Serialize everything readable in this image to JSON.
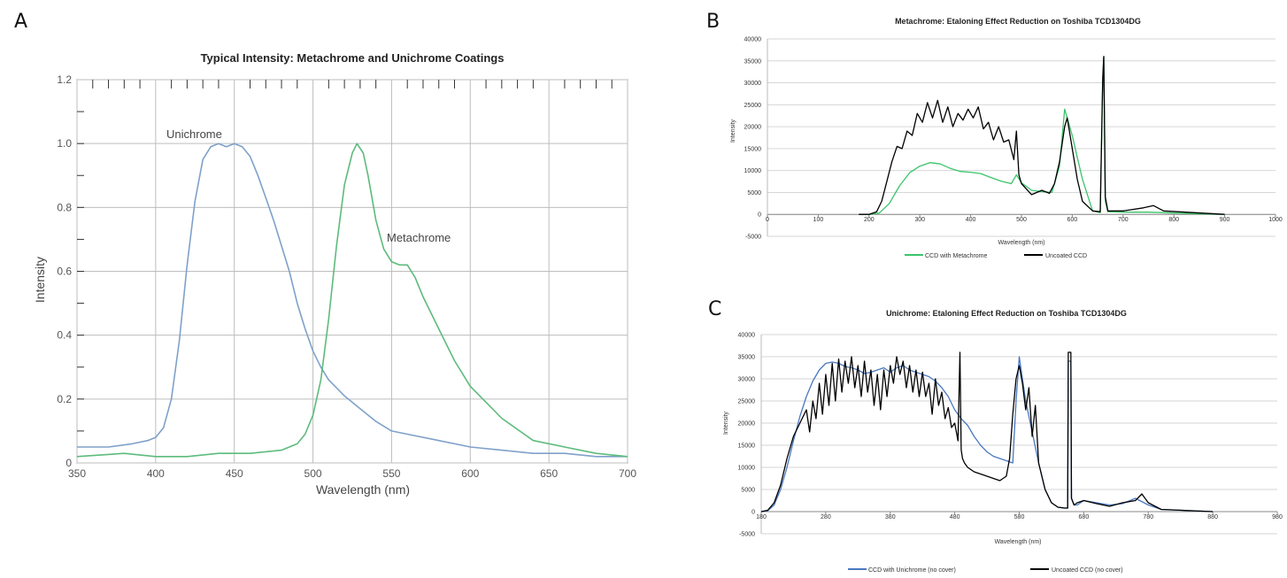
{
  "panel_letters": [
    "A",
    "B",
    "C"
  ],
  "colors": {
    "unichrome": "#7fa1c9",
    "metachrome": "#5dbb7c",
    "metachrome_ccd": "#3ac46a",
    "uncoated": "#000000",
    "unichrome_ccd": "#4a78c0",
    "grid": "#bdbdbd"
  },
  "chart_data": [
    {
      "type": "line",
      "title": "Typical Intensity: Metachrome and Unichrome Coatings",
      "xlabel": "Wavelength (nm)",
      "ylabel": "Intensity",
      "xlim": [
        350,
        700
      ],
      "ylim": [
        0,
        1.2
      ],
      "x_ticks": [
        "350",
        "400",
        "450",
        "500",
        "550",
        "600",
        "650",
        "700"
      ],
      "y_ticks": [
        "0",
        "0.2",
        "0.4",
        "0.6",
        "0.8",
        "1.0",
        "1.2"
      ],
      "annotations": [
        "Unichrome",
        "Metachrome"
      ],
      "series": [
        {
          "name": "Unichrome",
          "x": [
            350,
            370,
            385,
            395,
            400,
            405,
            410,
            415,
            420,
            425,
            430,
            435,
            440,
            445,
            450,
            455,
            460,
            465,
            470,
            475,
            480,
            485,
            490,
            495,
            500,
            505,
            510,
            520,
            530,
            540,
            550,
            560,
            580,
            600,
            620,
            640,
            660,
            680,
            700
          ],
          "y": [
            0.05,
            0.05,
            0.06,
            0.07,
            0.08,
            0.11,
            0.2,
            0.38,
            0.62,
            0.82,
            0.95,
            0.99,
            1.0,
            0.99,
            1.0,
            0.99,
            0.96,
            0.9,
            0.83,
            0.76,
            0.68,
            0.6,
            0.5,
            0.42,
            0.35,
            0.3,
            0.26,
            0.21,
            0.17,
            0.13,
            0.1,
            0.09,
            0.07,
            0.05,
            0.04,
            0.03,
            0.03,
            0.02,
            0.02
          ]
        },
        {
          "name": "Metachrome",
          "x": [
            350,
            380,
            400,
            420,
            440,
            460,
            480,
            490,
            495,
            500,
            505,
            510,
            515,
            520,
            525,
            528,
            532,
            535,
            540,
            545,
            550,
            555,
            560,
            565,
            570,
            580,
            590,
            600,
            610,
            620,
            640,
            660,
            680,
            700
          ],
          "y": [
            0.02,
            0.03,
            0.02,
            0.02,
            0.03,
            0.03,
            0.04,
            0.06,
            0.09,
            0.15,
            0.26,
            0.45,
            0.68,
            0.87,
            0.97,
            1.0,
            0.97,
            0.9,
            0.76,
            0.67,
            0.63,
            0.62,
            0.62,
            0.58,
            0.52,
            0.42,
            0.32,
            0.24,
            0.19,
            0.14,
            0.07,
            0.05,
            0.03,
            0.02
          ]
        }
      ]
    },
    {
      "type": "line",
      "title": "Metachrome: Etaloning Effect Reduction on Toshiba TCD1304DG",
      "xlabel": "Wavelength (nm)",
      "ylabel": "Intensity",
      "xlim": [
        0,
        1000
      ],
      "ylim": [
        -5000,
        40000
      ],
      "x_ticks": [
        "0",
        "100",
        "200",
        "300",
        "400",
        "500",
        "600",
        "700",
        "800",
        "900",
        "1000"
      ],
      "y_ticks": [
        "-5000",
        "0",
        "5000",
        "10000",
        "15000",
        "20000",
        "25000",
        "30000",
        "35000",
        "40000"
      ],
      "series": [
        {
          "name": "CCD with Metachrome",
          "x": [
            180,
            200,
            220,
            240,
            260,
            280,
            300,
            320,
            340,
            360,
            380,
            400,
            420,
            440,
            460,
            480,
            490,
            500,
            520,
            540,
            560,
            575,
            585,
            590,
            600,
            610,
            620,
            640,
            655,
            660,
            662,
            665,
            670,
            700,
            750,
            800,
            900
          ],
          "y": [
            0,
            0,
            300,
            2500,
            6500,
            9500,
            11000,
            11800,
            11500,
            10500,
            9800,
            9600,
            9300,
            8400,
            7600,
            7000,
            9000,
            7200,
            5500,
            5200,
            5000,
            11000,
            24000,
            22000,
            18000,
            13000,
            8000,
            800,
            400,
            30000,
            36000,
            3000,
            600,
            500,
            500,
            300,
            0
          ]
        },
        {
          "name": "Uncoated CCD",
          "x": [
            180,
            200,
            215,
            225,
            235,
            245,
            255,
            265,
            275,
            285,
            295,
            305,
            315,
            325,
            335,
            345,
            355,
            365,
            375,
            385,
            395,
            405,
            415,
            425,
            435,
            445,
            455,
            465,
            475,
            485,
            490,
            495,
            500,
            520,
            540,
            555,
            565,
            575,
            585,
            590,
            600,
            610,
            620,
            640,
            655,
            660,
            662,
            665,
            670,
            700,
            740,
            760,
            780,
            900
          ],
          "y": [
            0,
            0,
            600,
            3000,
            7500,
            12000,
            15500,
            15000,
            19000,
            18000,
            23000,
            21000,
            25500,
            22000,
            26000,
            21000,
            24500,
            20000,
            23000,
            21500,
            24000,
            22000,
            24500,
            19500,
            21000,
            17000,
            20000,
            16500,
            17000,
            12500,
            19000,
            9000,
            7000,
            4500,
            5500,
            4800,
            7000,
            12000,
            20000,
            22000,
            15000,
            8000,
            3000,
            800,
            600,
            31000,
            36000,
            4000,
            800,
            800,
            1500,
            2000,
            800,
            0
          ]
        }
      ]
    },
    {
      "type": "line",
      "title": "Unichrome: Etaloning Effect Reduction on Toshiba TCD1304DG",
      "xlabel": "Wavelength (nm)",
      "ylabel": "Intensity",
      "xlim": [
        180,
        980
      ],
      "ylim": [
        -5000,
        40000
      ],
      "x_ticks": [
        "180",
        "280",
        "380",
        "480",
        "580",
        "680",
        "780",
        "880",
        "980"
      ],
      "y_ticks": [
        "-5000",
        "0",
        "5000",
        "10000",
        "15000",
        "20000",
        "25000",
        "30000",
        "35000",
        "40000"
      ],
      "series": [
        {
          "name": "CCD with Unichrome (no cover)",
          "x": [
            180,
            190,
            200,
            210,
            220,
            230,
            240,
            250,
            260,
            270,
            280,
            290,
            300,
            310,
            320,
            330,
            340,
            350,
            360,
            370,
            380,
            390,
            400,
            410,
            420,
            430,
            440,
            450,
            460,
            470,
            480,
            490,
            500,
            510,
            520,
            530,
            540,
            550,
            560,
            570,
            575,
            580,
            585,
            590,
            600,
            610,
            620,
            630,
            640,
            650,
            655,
            656,
            660,
            661,
            665,
            670,
            680,
            700,
            720,
            740,
            760,
            780,
            800,
            880
          ],
          "y": [
            0,
            200,
            1500,
            5000,
            10000,
            16000,
            21500,
            26000,
            29500,
            32000,
            33500,
            33800,
            33500,
            32800,
            32500,
            32000,
            31200,
            31500,
            32000,
            32500,
            31500,
            32500,
            33000,
            32000,
            31500,
            31000,
            30500,
            29500,
            28000,
            26000,
            23000,
            21000,
            19500,
            17000,
            15000,
            13500,
            12500,
            12000,
            11500,
            11000,
            25000,
            35000,
            30000,
            25000,
            18000,
            11000,
            5000,
            2000,
            1000,
            800,
            800,
            34000,
            34000,
            3000,
            1500,
            1500,
            2500,
            2000,
            1500,
            1800,
            3000,
            1500,
            500,
            0
          ]
        },
        {
          "name": "Uncoated CCD (no cover)",
          "x": [
            180,
            190,
            200,
            210,
            220,
            230,
            240,
            250,
            255,
            260,
            265,
            270,
            275,
            280,
            285,
            290,
            295,
            300,
            305,
            310,
            315,
            320,
            325,
            330,
            335,
            340,
            345,
            350,
            355,
            360,
            365,
            370,
            375,
            380,
            385,
            390,
            395,
            400,
            405,
            410,
            415,
            420,
            425,
            430,
            435,
            440,
            445,
            450,
            455,
            460,
            465,
            470,
            475,
            480,
            485,
            488,
            490,
            492,
            495,
            500,
            510,
            520,
            530,
            540,
            550,
            560,
            565,
            570,
            575,
            580,
            585,
            590,
            595,
            600,
            605,
            610,
            620,
            630,
            640,
            650,
            655,
            656,
            660,
            661,
            665,
            670,
            680,
            700,
            720,
            740,
            760,
            770,
            780,
            800,
            880
          ],
          "y": [
            0,
            300,
            2000,
            6000,
            12000,
            17000,
            20000,
            23000,
            18000,
            25000,
            21000,
            29000,
            22000,
            31000,
            24000,
            33500,
            25000,
            34500,
            27000,
            34000,
            29000,
            35000,
            28000,
            33000,
            26000,
            34000,
            27000,
            32000,
            24000,
            31000,
            23000,
            32000,
            26000,
            33000,
            29000,
            35000,
            31000,
            34000,
            28000,
            33000,
            27000,
            32000,
            26000,
            31500,
            26000,
            29000,
            22000,
            30000,
            24000,
            27000,
            21000,
            23500,
            19000,
            20000,
            16000,
            36000,
            14000,
            12000,
            11000,
            10000,
            9000,
            8500,
            8000,
            7500,
            7000,
            8000,
            12000,
            22000,
            30000,
            33000,
            29000,
            23000,
            28000,
            17000,
            24000,
            11000,
            5000,
            2000,
            1000,
            800,
            800,
            36000,
            36000,
            3000,
            1500,
            2000,
            2500,
            1800,
            1200,
            2000,
            2500,
            4000,
            2000,
            500,
            0
          ]
        }
      ]
    }
  ]
}
